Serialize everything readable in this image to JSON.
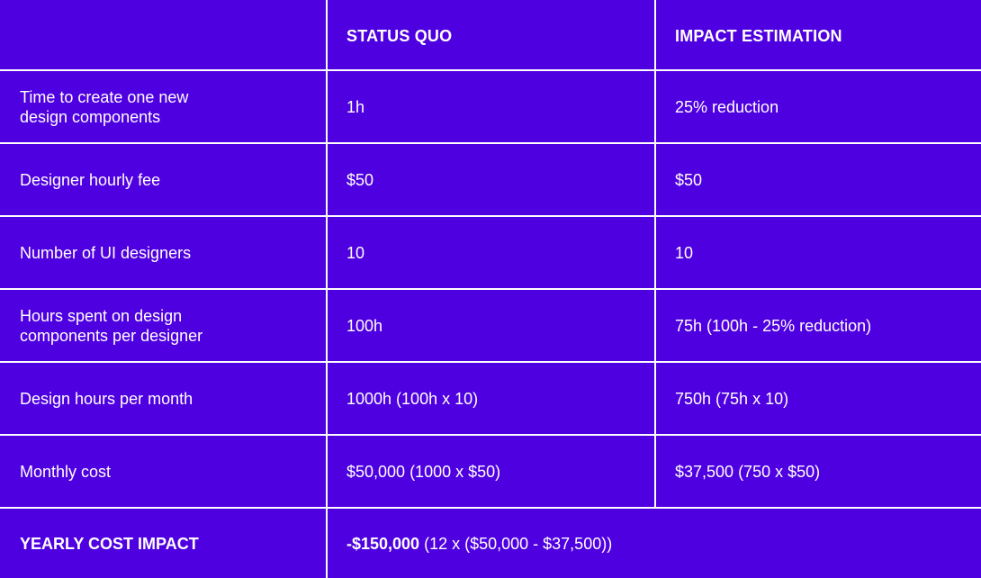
{
  "table": {
    "headers": [
      "",
      "STATUS QUO",
      "IMPACT ESTIMATION"
    ],
    "rows": [
      {
        "label": "Time to create one new\ndesign components",
        "status_quo": "1h",
        "impact": "25% reduction"
      },
      {
        "label": "Designer hourly fee",
        "status_quo": "$50",
        "impact": "$50"
      },
      {
        "label": "Number of UI designers",
        "status_quo": "10",
        "impact": "10"
      },
      {
        "label": "Hours spent on design\ncomponents per designer",
        "status_quo": "100h",
        "impact": "75h (100h - 25% reduction)"
      },
      {
        "label": "Design hours per month",
        "status_quo": "1000h (100h x 10)",
        "impact": "750h (75h x 10)"
      },
      {
        "label": "Monthly cost",
        "status_quo": "$50,000 (1000 x $50)",
        "impact": "$37,500 (750 x $50)"
      }
    ],
    "footer": {
      "label": "YEARLY COST IMPACT",
      "value_bold": "-$150,000",
      "value_rest": " (12 x ($50,000 - $37,500))"
    }
  },
  "colors": {
    "cell_background": "#4f00e0",
    "text": "#ffffff",
    "grid_lines": "#ffffff"
  }
}
